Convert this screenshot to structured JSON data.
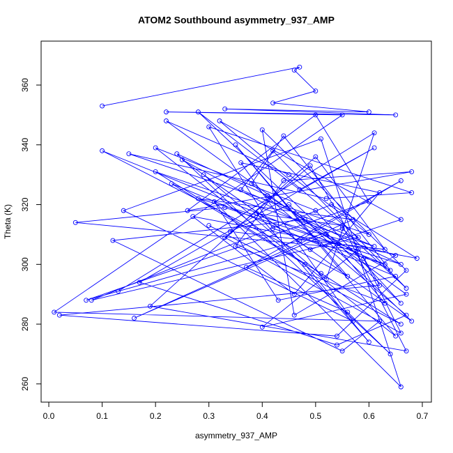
{
  "chart_data": {
    "type": "line",
    "title": "ATOM2 Southbound asymmetry_937_AMP",
    "x_label": "asymmetry_937_AMP",
    "y_label": "Theta (K)",
    "color": "#0000ff",
    "markers": true,
    "xlim": [
      -0.0144,
      0.717
    ],
    "ylim": [
      253.9,
      374.7
    ],
    "xticks": [
      {
        "value": 0,
        "label": "0.0"
      },
      0.1,
      0.2,
      0.3,
      0.4,
      0.5,
      0.6,
      0.7
    ],
    "yticks": [
      260,
      280,
      300,
      320,
      340,
      360
    ],
    "x": [
      0.1,
      0.47,
      0.46,
      0.5,
      0.42,
      0.6,
      0.33,
      0.65,
      0.22,
      0.55,
      0.01,
      0.62,
      0.55,
      0.12,
      0.48,
      0.66,
      0.33,
      0.05,
      0.58,
      0.4,
      0.67,
      0.22,
      0.45,
      0.6,
      0.15,
      0.52,
      0.68,
      0.3,
      0.42,
      0.63,
      0.1,
      0.56,
      0.35,
      0.65,
      0.2,
      0.5,
      0.66,
      0.28,
      0.47,
      0.61,
      0.17,
      0.54,
      0.67,
      0.38,
      0.44,
      0.64,
      0.25,
      0.49,
      0.66,
      0.32,
      0.58,
      0.08,
      0.53,
      0.69,
      0.27,
      0.46,
      0.62,
      0.36,
      0.57,
      0.14,
      0.51,
      0.66,
      0.31,
      0.43,
      0.65,
      0.23,
      0.48,
      0.6,
      0.39,
      0.55,
      0.67,
      0.19,
      0.5,
      0.63,
      0.34,
      0.45,
      0.68,
      0.29,
      0.52,
      0.61,
      0.13,
      0.47,
      0.66,
      0.37,
      0.56,
      0.64,
      0.24,
      0.41,
      0.59,
      0.66,
      0.33,
      0.49,
      0.62,
      0.02,
      0.54,
      0.67,
      0.4,
      0.46,
      0.65,
      0.28,
      0.57,
      0.16,
      0.52,
      0.63,
      0.35,
      0.44,
      0.68,
      0.26,
      0.5,
      0.6,
      0.07,
      0.55,
      0.67,
      0.42,
      0.36,
      0.61,
      0.2,
      0.51,
      0.66,
      0.3
    ],
    "values": [
      353,
      366,
      365,
      358,
      354,
      351,
      352,
      350,
      351,
      350,
      284,
      281,
      271,
      308,
      315,
      300,
      319,
      314,
      305,
      279,
      290,
      348,
      330,
      310,
      337,
      322,
      324,
      346,
      312,
      300,
      338,
      296,
      340,
      276,
      339,
      318,
      287,
      351,
      325,
      339,
      294,
      273,
      283,
      327,
      343,
      298,
      335,
      305,
      315,
      348,
      309,
      288,
      320,
      302,
      316,
      290,
      324,
      334,
      281,
      318,
      342,
      259,
      321,
      288,
      296,
      327,
      300,
      274,
      317,
      313,
      271,
      286,
      336,
      305,
      311,
      320,
      281,
      330,
      295,
      344,
      291,
      308,
      328,
      299,
      284,
      270,
      337,
      323,
      302,
      277,
      309,
      333,
      293,
      283,
      276,
      298,
      345,
      283,
      303,
      322,
      315,
      282,
      310,
      287,
      306,
      328,
      331,
      318,
      350,
      321,
      288,
      312,
      292,
      338,
      325,
      306,
      331,
      297,
      280,
      313
    ]
  }
}
